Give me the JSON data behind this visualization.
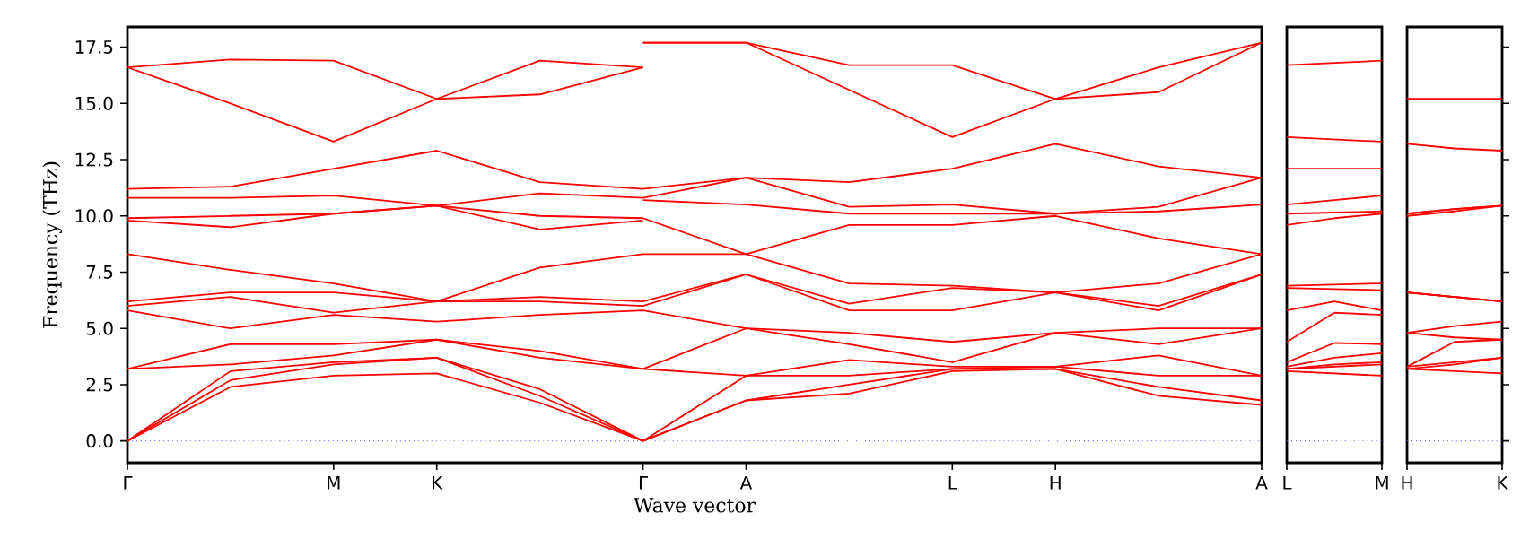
{
  "chart_data": [
    {
      "type": "line",
      "xlabel": "Wave vector",
      "ylabel": "Frequency (THz)",
      "marker": "none",
      "line_style": "solid",
      "ylim": [
        -0.97,
        18.4
      ],
      "categories": [
        "Γ",
        null,
        "M",
        "K",
        null,
        "Γ",
        "A",
        null,
        "L",
        "H",
        null,
        "A"
      ],
      "yticks": [
        {
          "value": 0,
          "label": "0.0"
        },
        {
          "value": 2.5,
          "label": "2.5"
        },
        {
          "value": 5,
          "label": "5.0"
        },
        {
          "value": 7.5,
          "label": "7.5"
        },
        {
          "value": 10,
          "label": "10.0"
        },
        {
          "value": 12.5,
          "label": "12.5"
        },
        {
          "value": 15,
          "label": "15.0"
        },
        {
          "value": 17.5,
          "label": "17.5"
        }
      ],
      "ref_lines": [
        {
          "axis": "y",
          "value": 0,
          "color": "#5555ff",
          "line_style": "dotted"
        }
      ],
      "series": [
        {
          "color": "#ff0000",
          "values": [
            16.6,
            16.95,
            16.9,
            15.2,
            16.9,
            16.6,
            null,
            null,
            null,
            null,
            null,
            null
          ]
        },
        {
          "color": "#ff0000",
          "values": [
            16.6,
            15.0,
            13.3,
            15.2,
            15.4,
            16.6,
            null,
            null,
            null,
            null,
            null,
            null
          ]
        },
        {
          "color": "#ff0000",
          "values": [
            9.8,
            9.5,
            10.1,
            10.45,
            9.4,
            9.8,
            null,
            null,
            null,
            null,
            null,
            null
          ]
        },
        {
          "color": "#ff0000",
          "values": [
            null,
            null,
            null,
            null,
            null,
            17.7,
            17.7,
            16.7,
            16.7,
            15.2,
            16.6,
            17.7
          ]
        },
        {
          "color": "#ff0000",
          "values": [
            null,
            null,
            null,
            null,
            null,
            17.7,
            17.7,
            15.6,
            13.5,
            15.2,
            15.5,
            17.7
          ]
        },
        {
          "color": "#ff0000",
          "values": [
            null,
            null,
            null,
            null,
            null,
            10.7,
            10.5,
            10.1,
            10.1,
            10.1,
            10.2,
            10.5
          ]
        },
        {
          "color": "#ff0000",
          "values": [
            11.2,
            11.3,
            12.1,
            12.9,
            11.5,
            11.2,
            11.7,
            11.5,
            12.1,
            13.2,
            12.2,
            11.7
          ]
        },
        {
          "color": "#ff0000",
          "values": [
            10.8,
            10.8,
            10.9,
            10.45,
            11.0,
            10.8,
            11.7,
            10.4,
            10.5,
            10.1,
            10.4,
            11.7
          ]
        },
        {
          "color": "#ff0000",
          "values": [
            9.9,
            10.0,
            10.1,
            10.45,
            10.0,
            9.9,
            8.3,
            9.6,
            9.6,
            10.0,
            9.0,
            8.3
          ]
        },
        {
          "color": "#ff0000",
          "values": [
            8.3,
            7.6,
            7.0,
            6.2,
            7.7,
            8.3,
            8.3,
            7.0,
            6.9,
            6.6,
            7.0,
            8.3
          ]
        },
        {
          "color": "#ff0000",
          "values": [
            6.2,
            6.6,
            6.6,
            6.2,
            6.4,
            6.2,
            7.4,
            6.1,
            6.8,
            6.6,
            6.0,
            7.4
          ]
        },
        {
          "color": "#ff0000",
          "values": [
            6.0,
            6.4,
            5.7,
            6.2,
            6.2,
            6.0,
            7.4,
            5.8,
            5.8,
            6.6,
            5.8,
            7.4
          ]
        },
        {
          "color": "#ff0000",
          "values": [
            5.8,
            5.0,
            5.6,
            5.3,
            5.6,
            5.8,
            5.0,
            4.8,
            4.4,
            4.8,
            5.0,
            5.0
          ]
        },
        {
          "color": "#ff0000",
          "values": [
            3.2,
            4.3,
            4.3,
            4.5,
            4.0,
            3.2,
            5.0,
            4.3,
            3.5,
            4.8,
            4.3,
            5.0
          ]
        },
        {
          "color": "#ff0000",
          "values": [
            3.2,
            3.4,
            3.8,
            4.5,
            3.7,
            3.2,
            2.9,
            3.6,
            3.3,
            3.3,
            3.8,
            2.9
          ]
        },
        {
          "color": "#ff0000",
          "values": [
            0,
            3.1,
            3.5,
            3.7,
            2.3,
            0,
            2.9,
            2.9,
            3.2,
            3.3,
            2.9,
            2.9
          ]
        },
        {
          "color": "#ff0000",
          "values": [
            0,
            2.7,
            3.4,
            3.7,
            2.0,
            0,
            1.8,
            2.5,
            3.2,
            3.2,
            2.4,
            1.8
          ]
        },
        {
          "color": "#ff0000",
          "values": [
            0,
            2.4,
            2.9,
            3.0,
            1.7,
            0,
            1.8,
            2.1,
            3.1,
            3.2,
            2.0,
            1.6
          ]
        }
      ]
    },
    {
      "type": "line",
      "marker": "none",
      "line_style": "solid",
      "ylim": [
        -0.97,
        18.4
      ],
      "tick_labels": "x",
      "categories": [
        "L",
        null,
        "M"
      ],
      "ref_lines": [
        {
          "axis": "y",
          "value": 0,
          "color": "#5555ff",
          "line_style": "dotted"
        }
      ],
      "series": [
        {
          "color": "#ff0000",
          "values": [
            16.7,
            16.8,
            16.9
          ]
        },
        {
          "color": "#ff0000",
          "values": [
            13.5,
            13.4,
            13.3
          ]
        },
        {
          "color": "#ff0000",
          "values": [
            12.1,
            12.1,
            12.1
          ]
        },
        {
          "color": "#ff0000",
          "values": [
            10.5,
            10.7,
            10.9
          ]
        },
        {
          "color": "#ff0000",
          "values": [
            10.1,
            10.15,
            10.2
          ]
        },
        {
          "color": "#ff0000",
          "values": [
            9.6,
            9.9,
            10.1
          ]
        },
        {
          "color": "#ff0000",
          "values": [
            6.9,
            6.95,
            7.0
          ]
        },
        {
          "color": "#ff0000",
          "values": [
            6.8,
            6.75,
            6.7
          ]
        },
        {
          "color": "#ff0000",
          "values": [
            5.8,
            6.2,
            5.8
          ]
        },
        {
          "color": "#ff0000",
          "values": [
            4.4,
            5.7,
            5.6
          ]
        },
        {
          "color": "#ff0000",
          "values": [
            3.5,
            4.35,
            4.3
          ]
        },
        {
          "color": "#ff0000",
          "values": [
            3.3,
            3.7,
            3.9
          ]
        },
        {
          "color": "#ff0000",
          "values": [
            3.2,
            3.4,
            3.5
          ]
        },
        {
          "color": "#ff0000",
          "values": [
            3.2,
            3.3,
            3.4
          ]
        },
        {
          "color": "#ff0000",
          "values": [
            3.1,
            3.0,
            2.9
          ]
        }
      ]
    },
    {
      "type": "line",
      "marker": "none",
      "line_style": "solid",
      "ylim": [
        -0.97,
        18.4
      ],
      "tick_labels": "x",
      "categories": [
        "H",
        null,
        "K"
      ],
      "yticks": [
        {
          "value": 0,
          "label": null
        },
        {
          "value": 2.5,
          "label": null
        },
        {
          "value": 5,
          "label": null
        },
        {
          "value": 7.5,
          "label": null
        },
        {
          "value": 10,
          "label": null
        },
        {
          "value": 12.5,
          "label": null
        },
        {
          "value": 15,
          "label": null
        },
        {
          "value": 17.5,
          "label": null
        }
      ],
      "ref_lines": [
        {
          "axis": "y",
          "value": 0,
          "color": "#5555ff",
          "line_style": "dotted"
        }
      ],
      "series": [
        {
          "color": "#ff0000",
          "values": [
            15.2,
            15.2,
            15.2
          ]
        },
        {
          "color": "#ff0000",
          "values": [
            15.2,
            15.2,
            15.2
          ]
        },
        {
          "color": "#ff0000",
          "values": [
            13.2,
            13.0,
            12.9
          ]
        },
        {
          "color": "#ff0000",
          "values": [
            10.1,
            10.3,
            10.45
          ]
        },
        {
          "color": "#ff0000",
          "values": [
            10.1,
            10.3,
            10.45
          ]
        },
        {
          "color": "#ff0000",
          "values": [
            10.0,
            10.2,
            10.45
          ]
        },
        {
          "color": "#ff0000",
          "values": [
            6.6,
            6.4,
            6.2
          ]
        },
        {
          "color": "#ff0000",
          "values": [
            6.6,
            6.4,
            6.2
          ]
        },
        {
          "color": "#ff0000",
          "values": [
            6.6,
            6.4,
            6.2
          ]
        },
        {
          "color": "#ff0000",
          "values": [
            4.8,
            5.1,
            5.3
          ]
        },
        {
          "color": "#ff0000",
          "values": [
            4.8,
            4.6,
            4.5
          ]
        },
        {
          "color": "#ff0000",
          "values": [
            3.3,
            4.4,
            4.5
          ]
        },
        {
          "color": "#ff0000",
          "values": [
            3.3,
            3.5,
            3.7
          ]
        },
        {
          "color": "#ff0000",
          "values": [
            3.2,
            3.4,
            3.7
          ]
        },
        {
          "color": "#ff0000",
          "values": [
            3.2,
            3.1,
            3.0
          ]
        }
      ]
    }
  ]
}
